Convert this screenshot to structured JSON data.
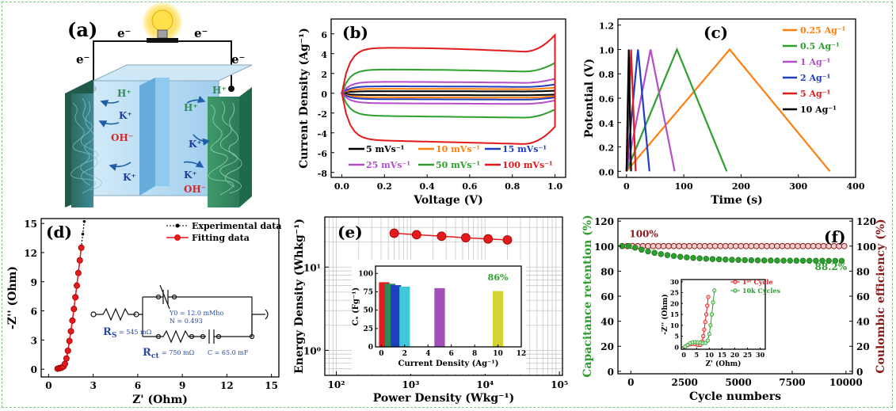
{
  "panel_a": {
    "label": "(a)",
    "electron_labels": [
      "e⁻",
      "e⁻",
      "e⁻",
      "e⁻"
    ],
    "ions": [
      "H⁺",
      "K⁺",
      "OH⁻",
      "K⁺",
      "H⁺",
      "K⁺",
      "H⁺",
      "K⁺",
      "OH⁻"
    ],
    "colors": {
      "h": "#2e8b57",
      "k": "#1e3f9e",
      "oh": "#d62728"
    }
  },
  "chart_data": [
    {
      "id": "b",
      "type": "line",
      "label": "(b)",
      "xlabel": "Voltage (V)",
      "ylabel": "Current Density (Ag⁻¹)",
      "xlim": [
        -0.05,
        1.05
      ],
      "ylim": [
        -8.5,
        7.5
      ],
      "xticks": [
        0.0,
        0.2,
        0.4,
        0.6,
        0.8,
        1.0
      ],
      "yticks": [
        -8,
        -6,
        -4,
        -2,
        0,
        2,
        4,
        6
      ],
      "xtick_labels": [
        "0.0",
        "0.2",
        "0.4",
        "0.6",
        "0.8",
        "1.0"
      ],
      "ytick_labels": [
        "-8",
        "-6",
        "-4",
        "-2",
        "0",
        "2",
        "4",
        "6"
      ],
      "series": [
        {
          "name": "5 mVs⁻¹",
          "color": "#000000",
          "upper": 0.2,
          "lower": -0.2
        },
        {
          "name": "10 mVs⁻¹",
          "color": "#ff7f0e",
          "upper": 0.45,
          "lower": -0.45
        },
        {
          "name": "15 mVs⁻¹",
          "color": "#1f3fbf",
          "upper": 0.7,
          "lower": -0.65
        },
        {
          "name": "25 mVs⁻¹",
          "color": "#b44fc8",
          "upper": 1.15,
          "lower": -1.1
        },
        {
          "name": "50 mVs⁻¹",
          "color": "#2ca02c",
          "upper": 2.4,
          "lower": -2.5
        },
        {
          "name": "100 mVs⁻¹",
          "color": "#e41a1c",
          "upper": 4.6,
          "lower": -5.2
        }
      ]
    },
    {
      "id": "c",
      "type": "line",
      "label": "(c)",
      "xlabel": "Time (s)",
      "ylabel": "Potential (V)",
      "xlim": [
        -15,
        400
      ],
      "ylim": [
        -0.05,
        1.25
      ],
      "xticks": [
        0,
        100,
        200,
        300,
        400
      ],
      "yticks": [
        0.0,
        0.2,
        0.4,
        0.6,
        0.8,
        1.0,
        1.2
      ],
      "xtick_labels": [
        "0",
        "100",
        "200",
        "300",
        "400"
      ],
      "ytick_labels": [
        "0.0",
        "0.2",
        "0.4",
        "0.6",
        "0.8",
        "1.0",
        "1.2"
      ],
      "series": [
        {
          "name": "0.25 Ag⁻¹",
          "color": "#ff7f0e",
          "t_charge": 180,
          "t_end": 355
        },
        {
          "name": "0.5 Ag⁻¹",
          "color": "#2ca02c",
          "t_charge": 88,
          "t_end": 175
        },
        {
          "name": "1 Ag⁻¹",
          "color": "#b44fc8",
          "t_charge": 42,
          "t_end": 84
        },
        {
          "name": "2 Ag⁻¹",
          "color": "#1f3fbf",
          "t_charge": 20,
          "t_end": 40
        },
        {
          "name": "5 Ag⁻¹",
          "color": "#e41a1c",
          "t_charge": 8,
          "t_end": 16
        },
        {
          "name": "10 Ag⁻¹",
          "color": "#000000",
          "t_charge": 4,
          "t_end": 8
        }
      ]
    },
    {
      "id": "d",
      "type": "scatter",
      "label": "(d)",
      "xlabel": "Z' (Ohm)",
      "ylabel": "-Z'' (Ohm)",
      "xlim": [
        -0.5,
        15.5
      ],
      "ylim": [
        -0.8,
        15.5
      ],
      "xticks": [
        0,
        3,
        6,
        9,
        12,
        15
      ],
      "yticks": [
        0,
        3,
        6,
        9,
        12,
        15
      ],
      "xtick_labels": [
        "0",
        "3",
        "6",
        "9",
        "12",
        "15"
      ],
      "ytick_labels": [
        "0",
        "3",
        "6",
        "9",
        "12",
        "15"
      ],
      "legend": [
        "Experimental data",
        "Fitting data"
      ],
      "series": [
        {
          "name": "Experimental data",
          "color": "#000000",
          "x": [
            0.6,
            0.7,
            0.8,
            0.9,
            1.0,
            1.1,
            1.2,
            1.3,
            1.4,
            1.5,
            1.6,
            1.7,
            1.8,
            1.9,
            2.0,
            2.1,
            2.2,
            2.3,
            2.4
          ],
          "y": [
            0.0,
            0.1,
            0.15,
            0.2,
            0.3,
            0.6,
            1.2,
            2.0,
            3.0,
            4.0,
            5.1,
            6.3,
            7.5,
            8.7,
            10.0,
            11.3,
            12.6,
            13.9,
            15.2
          ]
        },
        {
          "name": "Fitting data",
          "color": "#e41a1c",
          "x": [
            0.6,
            0.7,
            0.8,
            0.9,
            1.0,
            1.1,
            1.2,
            1.3,
            1.4,
            1.5,
            1.6,
            1.7,
            1.8,
            1.9,
            2.0,
            2.1,
            2.2
          ],
          "y": [
            0.05,
            0.1,
            0.12,
            0.18,
            0.28,
            0.55,
            1.1,
            1.9,
            2.9,
            3.9,
            5.0,
            6.2,
            7.4,
            8.6,
            9.9,
            11.2,
            12.5
          ]
        }
      ],
      "circuit": {
        "rs": "R",
        "rs_sub": "S",
        "rs_val": "= 545 mΩ",
        "y0": "Y0 = 12.0 mMho",
        "n": "N = 0.493",
        "rct": "R",
        "rct_sub": "ct",
        "rct_val": "= 750 mΩ",
        "c": "C = 65.0 mF"
      }
    },
    {
      "id": "e",
      "type": "line",
      "label": "(e)",
      "xlabel": "Power Density (Wkg⁻¹)",
      "ylabel": "Energy Density (Whkg⁻¹)",
      "xscale": "log",
      "yscale": "log",
      "xlim": [
        70,
        110000
      ],
      "ylim": [
        0.5,
        40
      ],
      "xtick_labels": [
        "10²",
        "10³",
        "10⁴",
        "10⁵"
      ],
      "ytick_labels": [
        "10⁰",
        "10¹"
      ],
      "x": [
        600,
        1200,
        2600,
        5500,
        11000,
        20000
      ],
      "y": [
        25.5,
        24.5,
        23.5,
        22.5,
        21.8,
        21.2
      ],
      "color": "#e41a1c",
      "inset": {
        "type": "bar",
        "xlabel": "Current Density (Ag⁻¹)",
        "ylabel": "Cₛ (Fg⁻¹)",
        "xlim": [
          -0.5,
          12
        ],
        "ylim": [
          0,
          110
        ],
        "xticks": [
          0,
          2,
          4,
          6,
          8,
          10,
          12
        ],
        "yticks": [
          0,
          25,
          50,
          75,
          100
        ],
        "xtick_labels": [
          "0",
          "2",
          "4",
          "6",
          "8",
          "10",
          "12"
        ],
        "ytick_labels": [
          "0",
          "25",
          "50",
          "75",
          "100"
        ],
        "categories": [
          0.25,
          0.5,
          1,
          2,
          5,
          10
        ],
        "values": [
          88,
          86,
          84,
          82,
          80,
          76
        ],
        "colors": [
          "#e41a1c",
          "#2e8b57",
          "#1f3fbf",
          "#40c8d8",
          "#a050b8",
          "#d4d430"
        ],
        "annotation": "86%"
      }
    },
    {
      "id": "f",
      "type": "scatter",
      "label": "(f)",
      "xlabel": "Cycle numbers",
      "ylabel": "Capacitance retention (%)",
      "ylabel_right": "Coulombic efficiency (%)",
      "xlim": [
        -600,
        10300
      ],
      "ylim": [
        -2,
        122
      ],
      "xticks": [
        0,
        2500,
        5000,
        7500,
        10000
      ],
      "yticks": [
        0,
        20,
        40,
        60,
        80,
        100,
        120
      ],
      "xtick_labels": [
        "0",
        "2500",
        "5000",
        "7500",
        "10000"
      ],
      "ytick_labels": [
        "0",
        "20",
        "40",
        "60",
        "80",
        "100",
        "120"
      ],
      "annotations": [
        "100%",
        "88.2%"
      ],
      "retention": {
        "color": "#2ca02c",
        "start": 100,
        "end": 88.2
      },
      "efficiency": {
        "color": "#8b1a1a",
        "value": 100
      },
      "inset": {
        "xlabel": "Z' (Ohm)",
        "ylabel": "-Z'' (Ohm)",
        "xlim": [
          -1,
          32
        ],
        "ylim": [
          -1,
          31
        ],
        "xticks": [
          0,
          5,
          10,
          15,
          20,
          25,
          30
        ],
        "yticks": [
          0,
          5,
          10,
          15,
          20,
          25,
          30
        ],
        "xtick_labels": [
          "0",
          "5",
          "10",
          "15",
          "20",
          "25",
          "30"
        ],
        "ytick_labels": [
          "0",
          "5",
          "10",
          "15",
          "20",
          "25",
          "30"
        ],
        "legend": [
          "1ˢᵗ Cycle",
          "10k Cycles"
        ],
        "series": [
          {
            "name": "1st Cycle",
            "color": "#e41a1c",
            "x": [
              0.5,
              1.5,
              2.5,
              3.5,
              4.5,
              5.5,
              6.5,
              7.2,
              7.6,
              8.0,
              8.4,
              8.8,
              9.2,
              9.6
            ],
            "y": [
              0.2,
              0.9,
              1.3,
              1.4,
              1.3,
              1.0,
              1.0,
              2.5,
              5.0,
              8.0,
              11.5,
              15.0,
              19.0,
              23.0
            ]
          },
          {
            "name": "10k Cycles",
            "color": "#2ca02c",
            "x": [
              0.5,
              1.5,
              2.5,
              3.5,
              4.5,
              5.5,
              6.5,
              7.5,
              8.5,
              9.4,
              10.0,
              10.5,
              11.0,
              11.5,
              12.0
            ],
            "y": [
              0.2,
              1.0,
              1.8,
              2.2,
              2.3,
              2.2,
              2.0,
              1.8,
              1.9,
              3.0,
              6.0,
              10.0,
              15.0,
              20.5,
              26.0
            ]
          }
        ]
      }
    }
  ]
}
